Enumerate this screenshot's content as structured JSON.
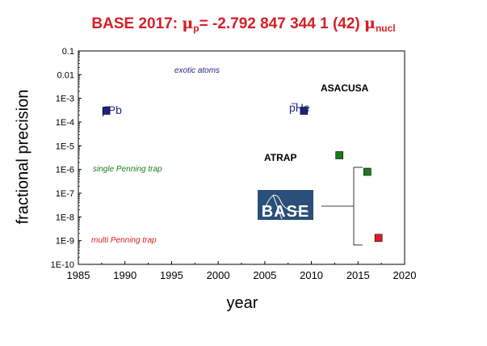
{
  "chart_data": {
    "type": "scatter",
    "title": {
      "prefix": "BASE 2017: ",
      "mu": "μ",
      "p": "p",
      "mid": "= -2.792 847 344 1 (42) ",
      "mu2": "μ",
      "nucl": "nucl"
    },
    "xlabel": "year",
    "ylabel": "fractional precision",
    "xlim": [
      1985,
      2020
    ],
    "ylim_log10": [
      -10,
      -1
    ],
    "y_scale": "log",
    "x_ticks": [
      "1985",
      "1990",
      "1995",
      "2000",
      "2005",
      "2010",
      "2015",
      "2020"
    ],
    "y_ticks": [
      "0.1",
      "0.01",
      "1E-3",
      "1E-4",
      "1E-5",
      "1E-6",
      "1E-7",
      "1E-8",
      "1E-9",
      "1E-10"
    ],
    "grid": false,
    "legend": "none",
    "series": [
      {
        "color": "#1a237e",
        "points": [
          {
            "x": 1988,
            "y": 0.0003
          },
          {
            "x": 2009.2,
            "y": 0.0003
          }
        ]
      },
      {
        "color": "#1b7a1b",
        "points": [
          {
            "x": 2013,
            "y": 4e-06
          },
          {
            "x": 2016,
            "y": 8e-07
          }
        ]
      },
      {
        "color": "#e31b23",
        "points": [
          {
            "x": 2017.2,
            "y": 1.3e-09
          }
        ]
      }
    ],
    "annotations": {
      "exotic_atoms": "exotic atoms",
      "pPb_bar": "_",
      "pPb_text": "pPb",
      "pHe_bar": "_",
      "pHe_text": "pHe",
      "asacusa": "ASACUSA",
      "atrap": "ATRAP",
      "single_trap": "single Penning trap",
      "multi_trap": "multi Penning trap",
      "base_logo": "BASE"
    },
    "colors": {
      "blue_text": "#1f2a8a",
      "green_text": "#1b7a1b",
      "red_text": "#d61f26",
      "logo_bg": "#2a4f78"
    }
  }
}
